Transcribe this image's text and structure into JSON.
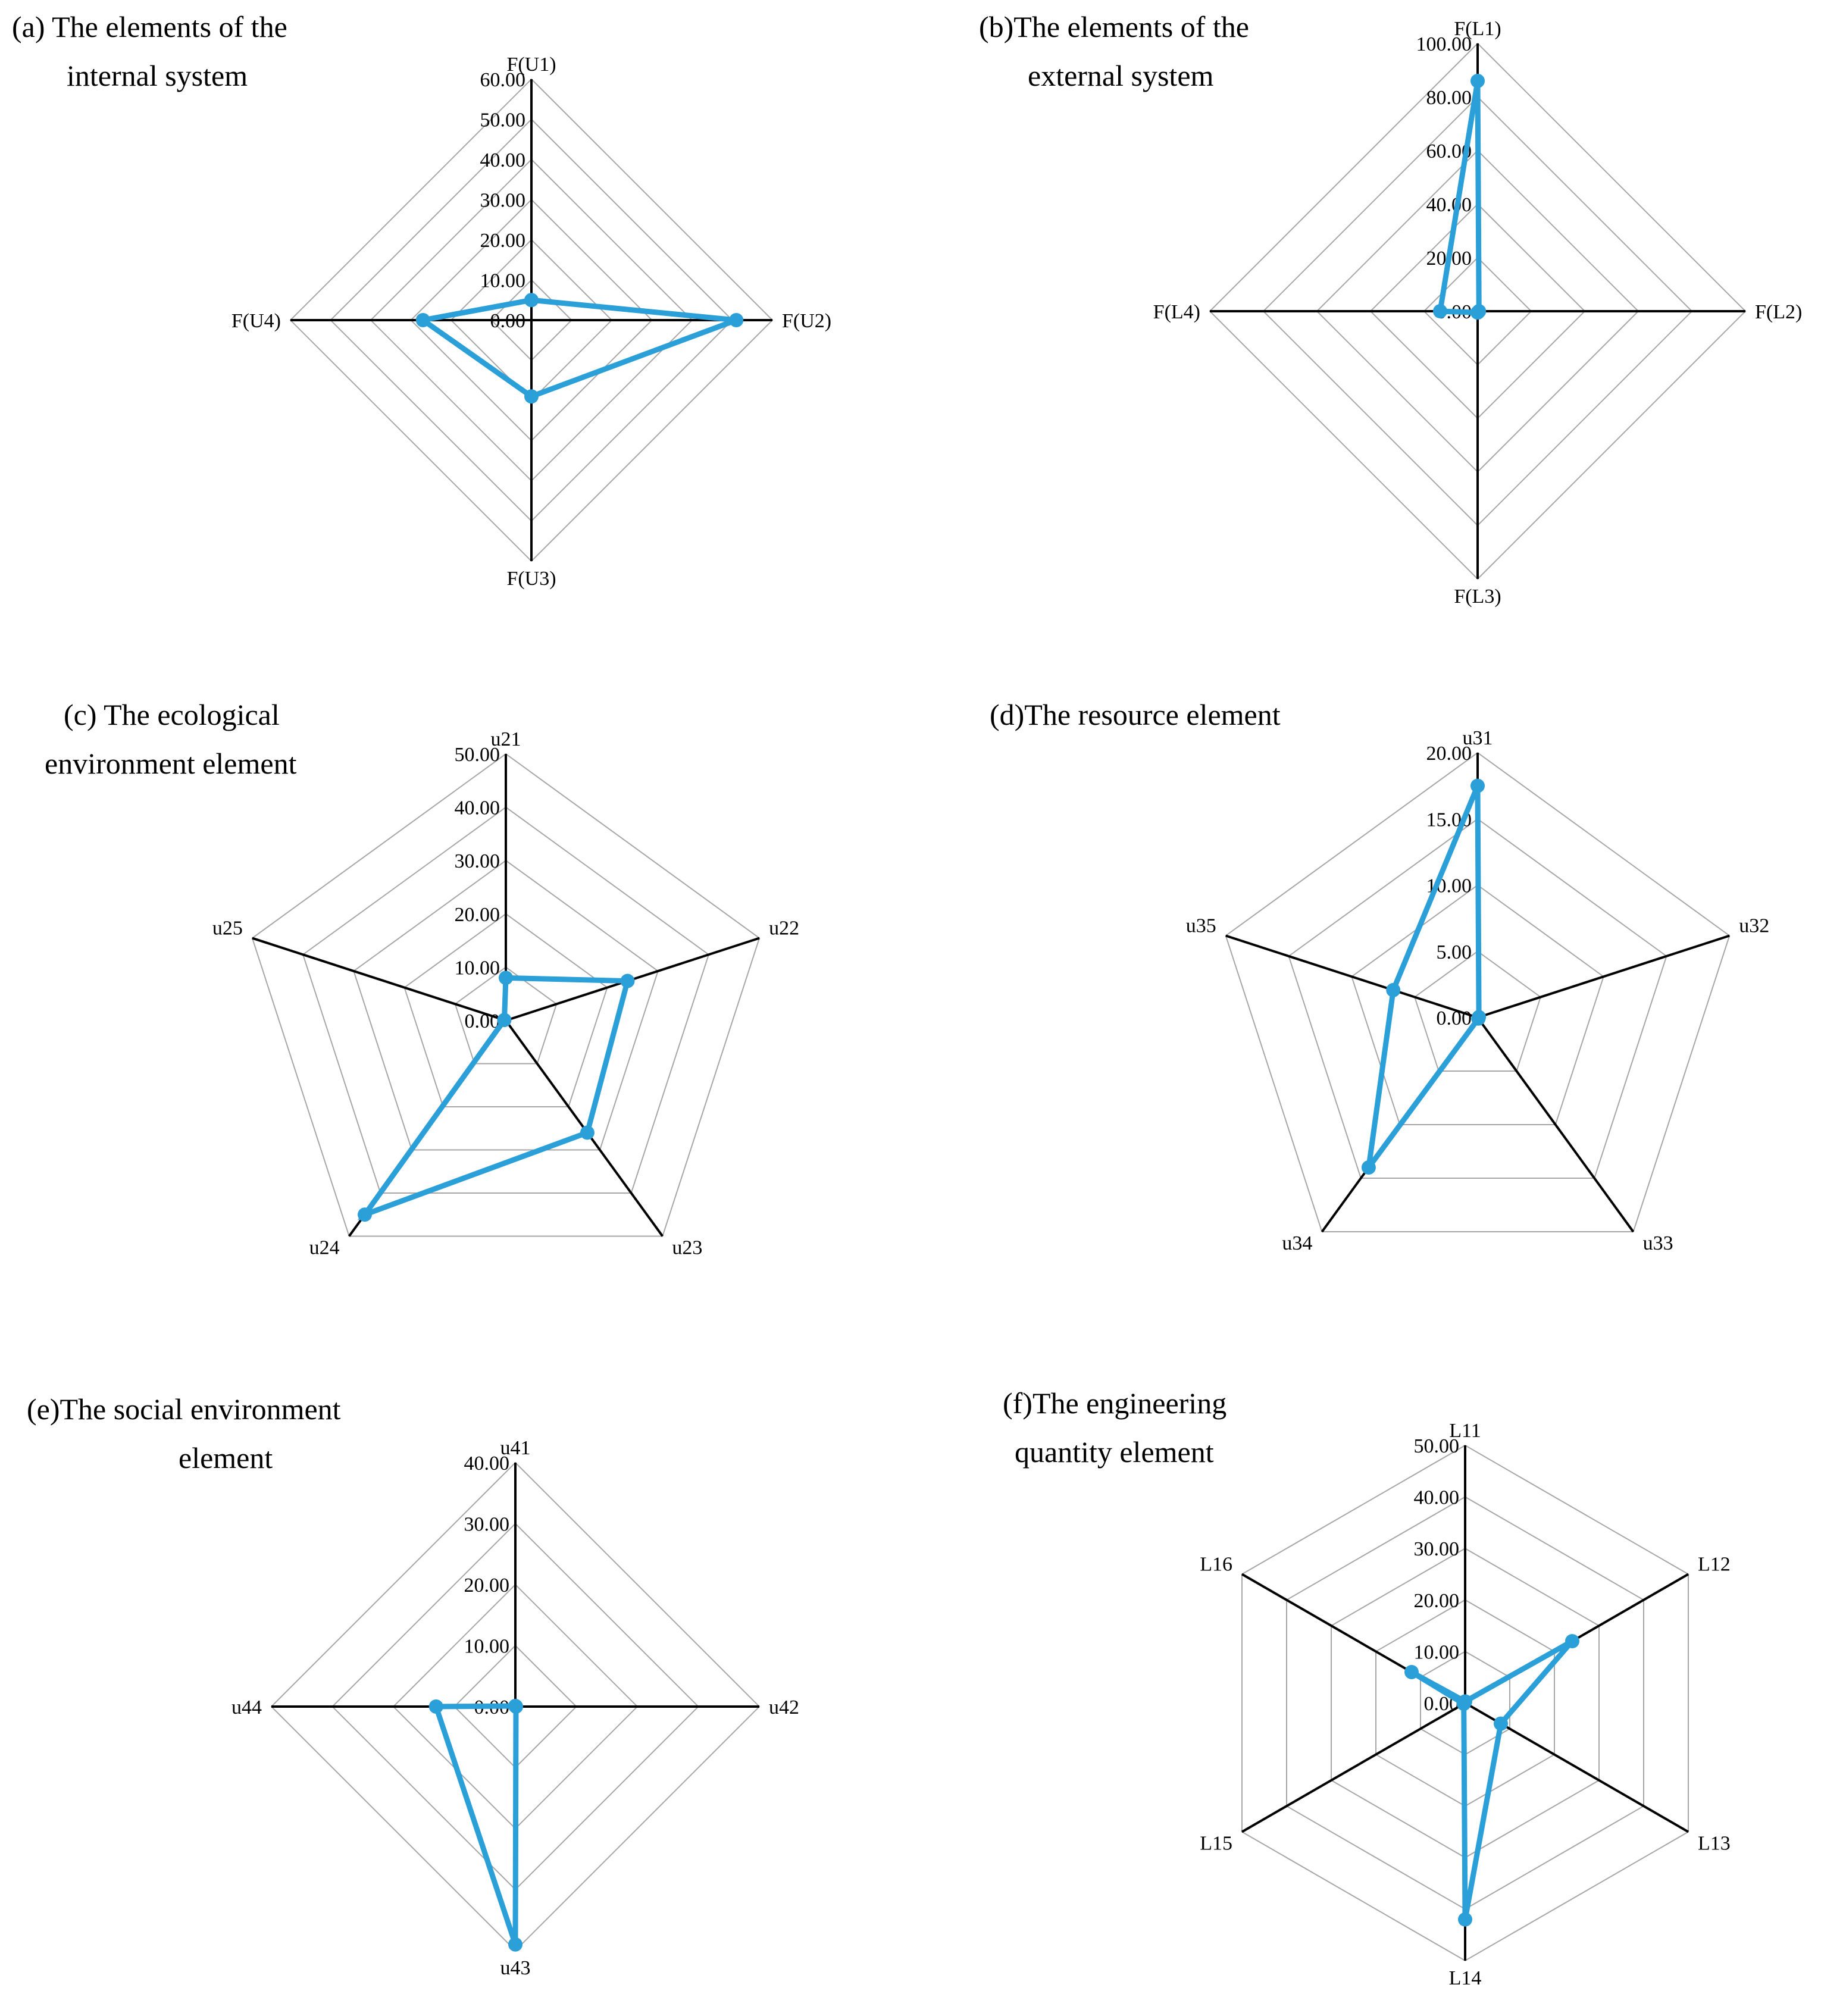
{
  "colors": {
    "series": "#2b9fd8",
    "grid": "#a6a6a6",
    "axis": "#000000"
  },
  "chart_data": [
    {
      "id": "a",
      "type": "radar",
      "title": [
        "(a) The elements of the",
        "internal system"
      ],
      "axes": [
        "F(U1)",
        "F(U2)",
        "F(U3)",
        "F(U4)"
      ],
      "values": [
        5.0,
        51.0,
        19.0,
        27.0
      ],
      "range": [
        0,
        60
      ],
      "ticks": [
        "0.00",
        "10.00",
        "20.00",
        "30.00",
        "40.00",
        "50.00",
        "60.00"
      ]
    },
    {
      "id": "b",
      "type": "radar",
      "title": [
        "(b)The elements of the",
        "external system"
      ],
      "axes": [
        "F(L1)",
        "F(L2)",
        "F(L3)",
        "F(L4)"
      ],
      "values": [
        86.0,
        0.5,
        0.5,
        14.0
      ],
      "range": [
        0,
        100
      ],
      "ticks": [
        "0.00",
        "20.00",
        "40.00",
        "60.00",
        "80.00",
        "100.00"
      ]
    },
    {
      "id": "c",
      "type": "radar",
      "title": [
        "(c) The  ecological",
        "environment element"
      ],
      "axes": [
        "u21",
        "u22",
        "u23",
        "u24",
        "u25"
      ],
      "values": [
        8.0,
        24.0,
        26.0,
        45.0,
        0.3
      ],
      "range": [
        0,
        50
      ],
      "ticks": [
        "0.00",
        "10.00",
        "20.00",
        "30.00",
        "40.00",
        "50.00"
      ]
    },
    {
      "id": "d",
      "type": "radar",
      "title": [
        "(d)The resource element"
      ],
      "axes": [
        "u31",
        "u32",
        "u33",
        "u34",
        "u35"
      ],
      "values": [
        17.5,
        0.1,
        0.1,
        14.0,
        6.7
      ],
      "range": [
        0,
        20
      ],
      "ticks": [
        "0.00",
        "5.00",
        "10.00",
        "15.00",
        "20.00"
      ]
    },
    {
      "id": "e",
      "type": "radar",
      "title": [
        "(e)The social  environment",
        "element"
      ],
      "axes": [
        "u41",
        "u42",
        "u43",
        "u44"
      ],
      "values": [
        0.1,
        0.1,
        39.0,
        13.0
      ],
      "range": [
        0,
        40
      ],
      "ticks": [
        "0.00",
        "10.00",
        "20.00",
        "30.00",
        "40.00"
      ]
    },
    {
      "id": "f",
      "type": "radar",
      "title": [
        "(f)The engineering",
        "quantity  element"
      ],
      "axes": [
        "L11",
        "L12",
        "L13",
        "L14",
        "L15",
        "L16"
      ],
      "values": [
        0.3,
        24.0,
        8.0,
        42.0,
        0.3,
        12.0
      ],
      "range": [
        0,
        50
      ],
      "ticks": [
        "0.00",
        "10.00",
        "20.00",
        "30.00",
        "40.00",
        "50.00"
      ]
    }
  ]
}
